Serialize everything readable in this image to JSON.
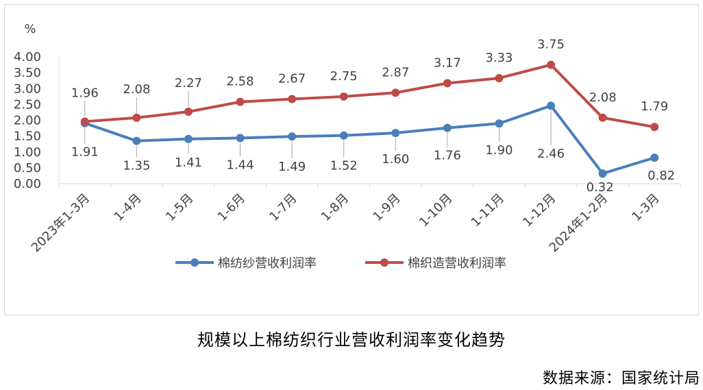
{
  "chart_data": {
    "type": "line",
    "ylabel": "%",
    "ylim": [
      0,
      4.0
    ],
    "yticks": [
      "0.00",
      "0.50",
      "1.00",
      "1.50",
      "2.00",
      "2.50",
      "3.00",
      "3.50",
      "4.00"
    ],
    "categories": [
      "2023年1-3月",
      "1-4月",
      "1-5月",
      "1-6月",
      "1-7月",
      "1-8月",
      "1-9月",
      "1-10月",
      "1-11月",
      "1-12月",
      "2024年1-2月",
      "1-3月"
    ],
    "series": [
      {
        "name": "棉纺纱营收利润率",
        "color": "#4a7ebb",
        "values": [
          1.91,
          1.35,
          1.41,
          1.44,
          1.49,
          1.52,
          1.6,
          1.76,
          1.9,
          2.46,
          0.32,
          0.82
        ],
        "labels": [
          "1.91",
          "1.35",
          "1.41",
          "1.44",
          "1.49",
          "1.52",
          "1.60",
          "1.76",
          "1.90",
          "2.46",
          "0.32",
          "0.82"
        ]
      },
      {
        "name": "棉织造营收利润率",
        "color": "#be4b48",
        "values": [
          1.96,
          2.08,
          2.27,
          2.58,
          2.67,
          2.75,
          2.87,
          3.17,
          3.33,
          3.75,
          2.08,
          1.79
        ],
        "labels": [
          "1.96",
          "2.08",
          "2.27",
          "2.58",
          "2.67",
          "2.75",
          "2.87",
          "3.17",
          "3.33",
          "3.75",
          "2.08",
          "1.79"
        ]
      }
    ],
    "legend_position": "bottom",
    "grid": false
  },
  "caption": "规模以上棉纺织行业营收利润率变化趋势",
  "source": "数据来源：国家统计局"
}
